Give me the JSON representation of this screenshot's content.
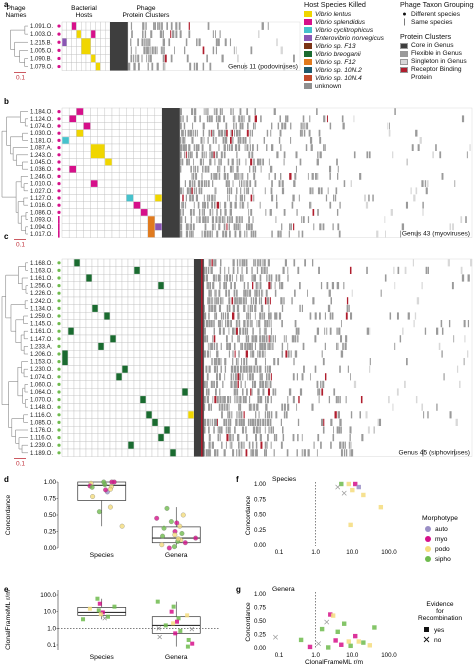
{
  "panel_letters": [
    "a",
    "b",
    "c",
    "d",
    "e",
    "f",
    "g"
  ],
  "heat": {
    "col_headers": {
      "names": "Phage Names",
      "hosts": "Bacterial Hosts",
      "clusters": "Phage Protein Clusters"
    },
    "scale_label": "0.1",
    "genus_labels": {
      "a": "Genus 11 (podoviruses)",
      "b": "Genus 43 (myoviruses)",
      "c": "Genus 45 (siphoviruses)"
    },
    "panel_a_rows": [
      "1.091.O.",
      "1.003.O.",
      "1.215.B.",
      "1.005.O.",
      "1.090.B.",
      "1.079.O."
    ],
    "panel_b_rows": [
      "1.184.O.",
      "1.124.O.",
      "1.074.O.",
      "1.030.O.",
      "1.181.O.",
      "1.087.A.",
      "1.243.O.",
      "1.045.O.",
      "1.036.O.",
      "1.246.O.",
      "1.010.O.",
      "1.027.O.",
      "1.127.O.",
      "1.016.O.",
      "1.086.O.",
      "1.093.O.",
      "1.094.O.",
      "1.017.O."
    ],
    "panel_c_rows": [
      "1.168.O.",
      "1.163.O.",
      "1.161.O.",
      "1.256.O.",
      "1.226.O.",
      "1.242.O.",
      "1.134.O.",
      "1.259.O.",
      "1.145.O.",
      "1.161.O.",
      "1.147.O.",
      "1.233.A.",
      "1.206.O.",
      "1.153.O.",
      "1.230.O.",
      "1.074.O.",
      "1.060.O.",
      "1.064.O.",
      "1.070.O.",
      "1.148.O.",
      "1.116.O.",
      "1.085.O.",
      "1.176.O.",
      "1.116.O.",
      "1.239.O.",
      "1.189.O."
    ]
  },
  "legend": {
    "host_title": "Host Species Killed",
    "hosts": [
      {
        "label": "Vibrio lentus",
        "color": "#f0d600",
        "italic": true
      },
      {
        "label": "Vibrio splendidus",
        "color": "#d6108a",
        "italic": true
      },
      {
        "label": "Vibrio cyclitrophicus",
        "color": "#46c2cc",
        "italic": true
      },
      {
        "label": "Enterovibrio norvegicus",
        "color": "#8a56b4",
        "italic": true
      },
      {
        "label": "Vibrio sp. F13",
        "color": "#7b3416",
        "italic": true
      },
      {
        "label": "Vibrio breoganii",
        "color": "#1a6b30",
        "italic": true
      },
      {
        "label": "Vibrio sp. F12",
        "color": "#e07a1e",
        "italic": true
      },
      {
        "label": "Vibrio sp. 10N.2",
        "color": "#1e5a6e",
        "italic": true
      },
      {
        "label": "Vibrio sp. 10N.4",
        "color": "#c24a2c",
        "italic": true
      },
      {
        "label": "unknown",
        "color": "#909090",
        "italic": false
      }
    ],
    "taxon_title": "Phage Taxon Groupings",
    "taxon_items": [
      {
        "marker": "●",
        "label": "Different species"
      },
      {
        "marker": "|",
        "label": "Same species"
      }
    ],
    "cluster_title": "Protein Clusters",
    "clusters": [
      {
        "label": "Core in Genus",
        "color": "#3e3e3e"
      },
      {
        "label": "Flexible in Genus",
        "color": "#9a9a9a"
      },
      {
        "label": "Singleton in Genus",
        "color": "#d8d8d8"
      },
      {
        "label": "Receptor Binding Protein",
        "color": "#b01e2e"
      }
    ]
  },
  "chart_data": [
    {
      "panel": "d",
      "type": "box",
      "ylabel": "Concordance",
      "categories": [
        "Species",
        "Genera"
      ],
      "yticks": [
        "0.00",
        "0.25",
        "0.50",
        "0.75",
        "1.00"
      ],
      "ylim": [
        0,
        1
      ],
      "boxes": [
        {
          "category": "Species",
          "q1": 0.72,
          "median": 0.95,
          "q3": 1.0,
          "whisker_low": 0.33,
          "whisker_high": 1.0
        },
        {
          "category": "Genera",
          "q1": 0.08,
          "median": 0.15,
          "q3": 0.32,
          "whisker_low": 0.0,
          "whisker_high": 0.62
        }
      ],
      "points": {
        "Species": [
          {
            "y": 1.0,
            "m": "myo"
          },
          {
            "y": 0.98,
            "m": "podo"
          },
          {
            "y": 0.96,
            "m": "sipho"
          },
          {
            "y": 0.94,
            "m": "myo"
          },
          {
            "y": 0.93,
            "m": "podo"
          },
          {
            "y": 1.0,
            "m": "sipho"
          },
          {
            "y": 0.85,
            "m": "auto"
          },
          {
            "y": 0.88,
            "m": "myo"
          },
          {
            "y": 0.78,
            "m": "podo"
          },
          {
            "y": 0.62,
            "m": "podo"
          },
          {
            "y": 0.55,
            "m": "sipho"
          },
          {
            "y": 0.33,
            "m": "podo"
          },
          {
            "y": 1.0,
            "m": "myo"
          },
          {
            "y": 0.92,
            "m": "sipho"
          },
          {
            "y": 0.89,
            "m": "podo"
          }
        ],
        "Genera": [
          {
            "y": 0.6,
            "m": "sipho"
          },
          {
            "y": 0.5,
            "m": "podo"
          },
          {
            "y": 0.45,
            "m": "myo"
          },
          {
            "y": 0.4,
            "m": "sipho"
          },
          {
            "y": 0.33,
            "m": "podo"
          },
          {
            "y": 0.3,
            "m": "sipho"
          },
          {
            "y": 0.25,
            "m": "myo"
          },
          {
            "y": 0.2,
            "m": "podo"
          },
          {
            "y": 0.18,
            "m": "sipho"
          },
          {
            "y": 0.15,
            "m": "myo"
          },
          {
            "y": 0.12,
            "m": "podo"
          },
          {
            "y": 0.1,
            "m": "sipho"
          },
          {
            "y": 0.08,
            "m": "myo"
          },
          {
            "y": 0.05,
            "m": "podo"
          },
          {
            "y": 0.02,
            "m": "sipho"
          },
          {
            "y": 0.0,
            "m": "myo"
          },
          {
            "y": 0.22,
            "m": "sipho"
          },
          {
            "y": 0.38,
            "m": "myo"
          },
          {
            "y": 0.14,
            "m": "podo"
          }
        ]
      }
    },
    {
      "panel": "e",
      "type": "box",
      "ylabel": "ClonalFrameML r/m",
      "categories": [
        "Species",
        "Genera"
      ],
      "yticks": [
        "0.1",
        "1.0",
        "10.0",
        "100.0"
      ],
      "log_y": true,
      "ylim": [
        0.05,
        200
      ],
      "reference_y": 1.0,
      "boxes": [
        {
          "category": "Species",
          "q1": 6.0,
          "median": 9.0,
          "q3": 18.0,
          "whisker_low": 3.5,
          "whisker_high": 60.0
        },
        {
          "category": "Genera",
          "q1": 0.5,
          "median": 1.5,
          "q3": 5.0,
          "whisker_low": 0.08,
          "whisker_high": 40.0
        }
      ],
      "points": {
        "Species": [
          {
            "y": 60.0,
            "m": "sipho",
            "e": "yes"
          },
          {
            "y": 30.0,
            "m": "myo",
            "e": "yes"
          },
          {
            "y": 20.0,
            "m": "sipho",
            "e": "yes"
          },
          {
            "y": 15.0,
            "m": "podo",
            "e": "yes"
          },
          {
            "y": 12.0,
            "m": "sipho",
            "e": "yes"
          },
          {
            "y": 9.0,
            "m": "myo",
            "e": "yes"
          },
          {
            "y": 7.0,
            "m": "podo",
            "e": "yes"
          },
          {
            "y": 5.0,
            "m": "sipho",
            "e": "yes"
          },
          {
            "y": 4.0,
            "m": "podo",
            "e": "no"
          },
          {
            "y": 3.5,
            "m": "sipho",
            "e": "yes"
          }
        ],
        "Genera": [
          {
            "y": 40.0,
            "m": "sipho",
            "e": "yes"
          },
          {
            "y": 20.0,
            "m": "sipho",
            "e": "yes"
          },
          {
            "y": 10.0,
            "m": "myo",
            "e": "yes"
          },
          {
            "y": 6.0,
            "m": "podo",
            "e": "yes"
          },
          {
            "y": 4.0,
            "m": "sipho",
            "e": "yes"
          },
          {
            "y": 2.5,
            "m": "myo",
            "e": "yes"
          },
          {
            "y": 1.5,
            "m": "sipho",
            "e": "yes"
          },
          {
            "y": 1.0,
            "m": "podo",
            "e": "no"
          },
          {
            "y": 0.7,
            "m": "sipho",
            "e": "yes"
          },
          {
            "y": 0.5,
            "m": "myo",
            "e": "yes"
          },
          {
            "y": 0.3,
            "m": "podo",
            "e": "no"
          },
          {
            "y": 0.2,
            "m": "sipho",
            "e": "yes"
          },
          {
            "y": 0.12,
            "m": "myo",
            "e": "yes"
          },
          {
            "y": 0.08,
            "m": "sipho",
            "e": "yes"
          },
          {
            "y": 2.0,
            "m": "podo",
            "e": "yes"
          },
          {
            "y": 0.9,
            "m": "sipho",
            "e": "no"
          }
        ]
      }
    },
    {
      "panel": "f",
      "type": "scatter",
      "title": "Species",
      "ylabel": "Concordance",
      "log_x": true,
      "xticks": [
        "0.1",
        "1.0",
        "10.0",
        "100.0"
      ],
      "yticks": [
        "0.00",
        "0.25",
        "0.50",
        "0.75",
        "1.00"
      ],
      "xlim": [
        0.05,
        200
      ],
      "ylim": [
        0,
        1
      ],
      "reference_x": 1.0,
      "points": [
        {
          "x": 5.0,
          "y": 1.0,
          "m": "sipho",
          "e": "yes"
        },
        {
          "x": 8.0,
          "y": 1.0,
          "m": "podo",
          "e": "yes"
        },
        {
          "x": 12.0,
          "y": 1.0,
          "m": "myo",
          "e": "yes"
        },
        {
          "x": 4.0,
          "y": 0.95,
          "m": "sipho",
          "e": "no"
        },
        {
          "x": 15.0,
          "y": 0.95,
          "m": "auto",
          "e": "yes"
        },
        {
          "x": 10.0,
          "y": 0.9,
          "m": "podo",
          "e": "yes"
        },
        {
          "x": 6.0,
          "y": 0.85,
          "m": "sipho",
          "e": "no"
        },
        {
          "x": 20.0,
          "y": 0.82,
          "m": "podo",
          "e": "yes"
        },
        {
          "x": 60.0,
          "y": 0.62,
          "m": "podo",
          "e": "yes"
        },
        {
          "x": 9.0,
          "y": 0.33,
          "m": "podo",
          "e": "yes"
        }
      ]
    },
    {
      "panel": "g",
      "type": "scatter",
      "title": "Genera",
      "xlabel": "ClonalFrameML r/m",
      "ylabel": "Concordance",
      "log_x": true,
      "xticks": [
        "0.1",
        "1.0",
        "10.0",
        "100.0"
      ],
      "yticks": [
        "0.00",
        "0.25",
        "0.50",
        "0.75",
        "1.00"
      ],
      "xlim": [
        0.05,
        200
      ],
      "ylim": [
        0,
        1
      ],
      "reference_x": 1.0,
      "points": [
        {
          "x": 2.5,
          "y": 0.62,
          "m": "myo",
          "e": "yes"
        },
        {
          "x": 3.0,
          "y": 0.6,
          "m": "podo",
          "e": "yes"
        },
        {
          "x": 2.0,
          "y": 0.48,
          "m": "sipho",
          "e": "no"
        },
        {
          "x": 6.0,
          "y": 0.45,
          "m": "sipho",
          "e": "yes"
        },
        {
          "x": 40.0,
          "y": 0.38,
          "m": "sipho",
          "e": "yes"
        },
        {
          "x": 1.5,
          "y": 0.35,
          "m": "sipho",
          "e": "yes"
        },
        {
          "x": 0.08,
          "y": 0.2,
          "m": "sipho",
          "e": "no"
        },
        {
          "x": 4.0,
          "y": 0.3,
          "m": "sipho",
          "e": "yes"
        },
        {
          "x": 12.0,
          "y": 0.22,
          "m": "myo",
          "e": "yes"
        },
        {
          "x": 0.4,
          "y": 0.15,
          "m": "sipho",
          "e": "yes"
        },
        {
          "x": 3.5,
          "y": 0.14,
          "m": "myo",
          "e": "yes"
        },
        {
          "x": 8.0,
          "y": 0.12,
          "m": "podo",
          "e": "yes"
        },
        {
          "x": 20.0,
          "y": 0.1,
          "m": "sipho",
          "e": "yes"
        },
        {
          "x": 1.2,
          "y": 0.08,
          "m": "podo",
          "e": "no"
        },
        {
          "x": 5.0,
          "y": 0.06,
          "m": "myo",
          "e": "yes"
        },
        {
          "x": 9.0,
          "y": 0.04,
          "m": "sipho",
          "e": "yes"
        },
        {
          "x": 30.0,
          "y": 0.05,
          "m": "podo",
          "e": "yes"
        },
        {
          "x": 0.7,
          "y": 0.02,
          "m": "myo",
          "e": "yes"
        },
        {
          "x": 2.2,
          "y": 0.01,
          "m": "sipho",
          "e": "yes"
        },
        {
          "x": 15.0,
          "y": 0.12,
          "m": "podo",
          "e": "yes"
        }
      ]
    }
  ],
  "scatter_legend": {
    "morpho_title": "Morphotype",
    "morphotypes": [
      {
        "key": "auto",
        "label": "auto",
        "color": "#9a8fc6"
      },
      {
        "key": "myo",
        "label": "myo",
        "color": "#d6108a"
      },
      {
        "key": "podo",
        "label": "podo",
        "color": "#f4dc7c"
      },
      {
        "key": "sipho",
        "label": "sipho",
        "color": "#6fbb4e"
      }
    ],
    "evidence_title": [
      "Evidence",
      "for",
      "Recombination"
    ],
    "evidence": [
      {
        "key": "yes",
        "label": "yes",
        "marker": "■"
      },
      {
        "key": "no",
        "label": "no",
        "marker": "✕"
      }
    ]
  }
}
